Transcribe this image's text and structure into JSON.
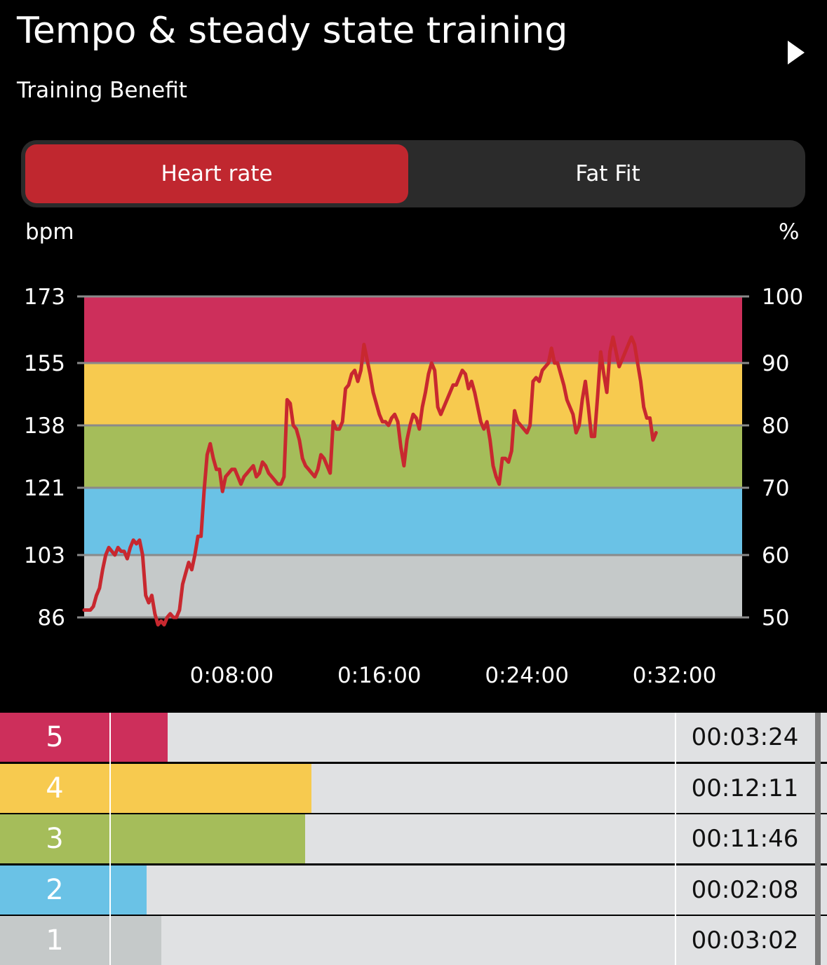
{
  "header": {
    "title": "Tempo & steady state training",
    "subtitle": "Training Benefit"
  },
  "icons": {
    "play": "play-triangle-icon"
  },
  "tabs": {
    "heart_rate": "Heart rate",
    "fat_fit": "Fat Fit",
    "active": "heart_rate"
  },
  "chart": {
    "left_unit": "bpm",
    "right_unit": "%"
  },
  "chart_data": {
    "type": "line",
    "title": "",
    "xlabel": "",
    "ylabel": "bpm",
    "y2label": "%",
    "xlim": [
      0,
      2140
    ],
    "ylim": [
      86,
      173
    ],
    "y_ticks": [
      173,
      155,
      138,
      121,
      103,
      86
    ],
    "y2_ticks": [
      100,
      90,
      80,
      70,
      60,
      50
    ],
    "x_tick_labels": [
      "0:08:00",
      "0:16:00",
      "0:24:00",
      "0:32:00"
    ],
    "x_tick_values": [
      480,
      960,
      1440,
      1920
    ],
    "zones": [
      {
        "zone": 5,
        "from": 155,
        "to": 173,
        "color": "#cd2f5b"
      },
      {
        "zone": 4,
        "from": 138,
        "to": 155,
        "color": "#f7ca4f"
      },
      {
        "zone": 3,
        "from": 121,
        "to": 138,
        "color": "#a5bd5a"
      },
      {
        "zone": 2,
        "from": 103,
        "to": 121,
        "color": "#6ac2e6"
      },
      {
        "zone": 1,
        "from": 86,
        "to": 103,
        "color": "#c5c9c9"
      }
    ],
    "line_color": "#c8282f",
    "series": [
      {
        "values": [
          [
            0,
            88
          ],
          [
            10,
            88
          ],
          [
            20,
            88
          ],
          [
            30,
            89
          ],
          [
            40,
            92
          ],
          [
            50,
            94
          ],
          [
            60,
            99
          ],
          [
            70,
            103
          ],
          [
            80,
            105
          ],
          [
            90,
            104
          ],
          [
            100,
            103
          ],
          [
            110,
            105
          ],
          [
            120,
            104
          ],
          [
            130,
            104
          ],
          [
            140,
            102
          ],
          [
            150,
            105
          ],
          [
            160,
            107
          ],
          [
            170,
            106
          ],
          [
            180,
            107
          ],
          [
            190,
            103
          ],
          [
            200,
            92
          ],
          [
            210,
            90
          ],
          [
            220,
            92
          ],
          [
            230,
            87
          ],
          [
            240,
            84
          ],
          [
            250,
            85
          ],
          [
            260,
            84
          ],
          [
            270,
            86
          ],
          [
            280,
            87
          ],
          [
            290,
            86
          ],
          [
            300,
            86
          ],
          [
            310,
            88
          ],
          [
            320,
            95
          ],
          [
            330,
            98
          ],
          [
            340,
            101
          ],
          [
            350,
            99
          ],
          [
            360,
            103
          ],
          [
            370,
            108
          ],
          [
            380,
            108
          ],
          [
            390,
            120
          ],
          [
            400,
            130
          ],
          [
            410,
            133
          ],
          [
            420,
            129
          ],
          [
            430,
            126
          ],
          [
            440,
            126
          ],
          [
            450,
            120
          ],
          [
            460,
            124
          ],
          [
            470,
            125
          ],
          [
            480,
            126
          ],
          [
            490,
            126
          ],
          [
            500,
            124
          ],
          [
            510,
            122
          ],
          [
            520,
            124
          ],
          [
            530,
            125
          ],
          [
            540,
            126
          ],
          [
            550,
            127
          ],
          [
            560,
            124
          ],
          [
            570,
            125
          ],
          [
            580,
            128
          ],
          [
            590,
            127
          ],
          [
            600,
            125
          ],
          [
            610,
            124
          ],
          [
            620,
            123
          ],
          [
            630,
            122
          ],
          [
            640,
            122
          ],
          [
            650,
            124
          ],
          [
            660,
            145
          ],
          [
            670,
            144
          ],
          [
            680,
            138
          ],
          [
            690,
            137
          ],
          [
            700,
            134
          ],
          [
            710,
            129
          ],
          [
            720,
            127
          ],
          [
            730,
            126
          ],
          [
            740,
            125
          ],
          [
            750,
            124
          ],
          [
            760,
            126
          ],
          [
            770,
            130
          ],
          [
            780,
            129
          ],
          [
            790,
            127
          ],
          [
            800,
            125
          ],
          [
            810,
            139
          ],
          [
            820,
            137
          ],
          [
            830,
            137
          ],
          [
            840,
            139
          ],
          [
            850,
            148
          ],
          [
            860,
            149
          ],
          [
            870,
            152
          ],
          [
            880,
            153
          ],
          [
            890,
            150
          ],
          [
            900,
            153
          ],
          [
            910,
            160
          ],
          [
            920,
            156
          ],
          [
            930,
            152
          ],
          [
            940,
            147
          ],
          [
            950,
            144
          ],
          [
            960,
            141
          ],
          [
            970,
            139
          ],
          [
            980,
            139
          ],
          [
            990,
            138
          ],
          [
            1000,
            140
          ],
          [
            1010,
            141
          ],
          [
            1020,
            139
          ],
          [
            1030,
            132
          ],
          [
            1040,
            127
          ],
          [
            1050,
            134
          ],
          [
            1060,
            138
          ],
          [
            1070,
            141
          ],
          [
            1080,
            140
          ],
          [
            1090,
            137
          ],
          [
            1100,
            143
          ],
          [
            1110,
            147
          ],
          [
            1120,
            152
          ],
          [
            1130,
            155
          ],
          [
            1140,
            153
          ],
          [
            1150,
            143
          ],
          [
            1160,
            141
          ],
          [
            1170,
            143
          ],
          [
            1180,
            145
          ],
          [
            1190,
            147
          ],
          [
            1200,
            149
          ],
          [
            1210,
            149
          ],
          [
            1220,
            151
          ],
          [
            1230,
            153
          ],
          [
            1240,
            152
          ],
          [
            1250,
            148
          ],
          [
            1260,
            150
          ],
          [
            1270,
            147
          ],
          [
            1280,
            143
          ],
          [
            1290,
            139
          ],
          [
            1300,
            137
          ],
          [
            1310,
            139
          ],
          [
            1320,
            134
          ],
          [
            1330,
            127
          ],
          [
            1340,
            124
          ],
          [
            1350,
            122
          ],
          [
            1360,
            129
          ],
          [
            1370,
            129
          ],
          [
            1380,
            128
          ],
          [
            1390,
            131
          ],
          [
            1400,
            142
          ],
          [
            1410,
            139
          ],
          [
            1420,
            138
          ],
          [
            1430,
            137
          ],
          [
            1440,
            136
          ],
          [
            1450,
            138
          ],
          [
            1460,
            150
          ],
          [
            1470,
            151
          ],
          [
            1480,
            150
          ],
          [
            1490,
            153
          ],
          [
            1500,
            154
          ],
          [
            1510,
            155
          ],
          [
            1520,
            159
          ],
          [
            1530,
            155
          ],
          [
            1540,
            155
          ],
          [
            1550,
            152
          ],
          [
            1560,
            149
          ],
          [
            1570,
            145
          ],
          [
            1580,
            143
          ],
          [
            1590,
            141
          ],
          [
            1600,
            136
          ],
          [
            1610,
            138
          ],
          [
            1620,
            145
          ],
          [
            1630,
            150
          ],
          [
            1640,
            143
          ],
          [
            1650,
            135
          ],
          [
            1660,
            135
          ],
          [
            1670,
            146
          ],
          [
            1680,
            158
          ],
          [
            1690,
            152
          ],
          [
            1700,
            147
          ],
          [
            1710,
            158
          ],
          [
            1720,
            162
          ],
          [
            1730,
            158
          ],
          [
            1740,
            154
          ],
          [
            1750,
            156
          ],
          [
            1760,
            158
          ],
          [
            1770,
            160
          ],
          [
            1780,
            162
          ],
          [
            1790,
            160
          ],
          [
            1800,
            155
          ],
          [
            1810,
            150
          ],
          [
            1820,
            143
          ],
          [
            1830,
            140
          ],
          [
            1840,
            140
          ],
          [
            1850,
            134
          ],
          [
            1860,
            136
          ]
        ]
      }
    ]
  },
  "zone_table": {
    "rows": [
      {
        "zone": "5",
        "time": "00:03:24",
        "color": "#cd2f5b",
        "fraction": 0.101
      },
      {
        "zone": "4",
        "time": "00:12:11",
        "color": "#f7ca4f",
        "fraction": 0.356
      },
      {
        "zone": "3",
        "time": "00:11:46",
        "color": "#a5bd5a",
        "fraction": 0.344
      },
      {
        "zone": "2",
        "time": "00:02:08",
        "color": "#6ac2e6",
        "fraction": 0.063
      },
      {
        "zone": "1",
        "time": "00:03:02",
        "color": "#c5c9c9",
        "fraction": 0.09
      }
    ]
  }
}
